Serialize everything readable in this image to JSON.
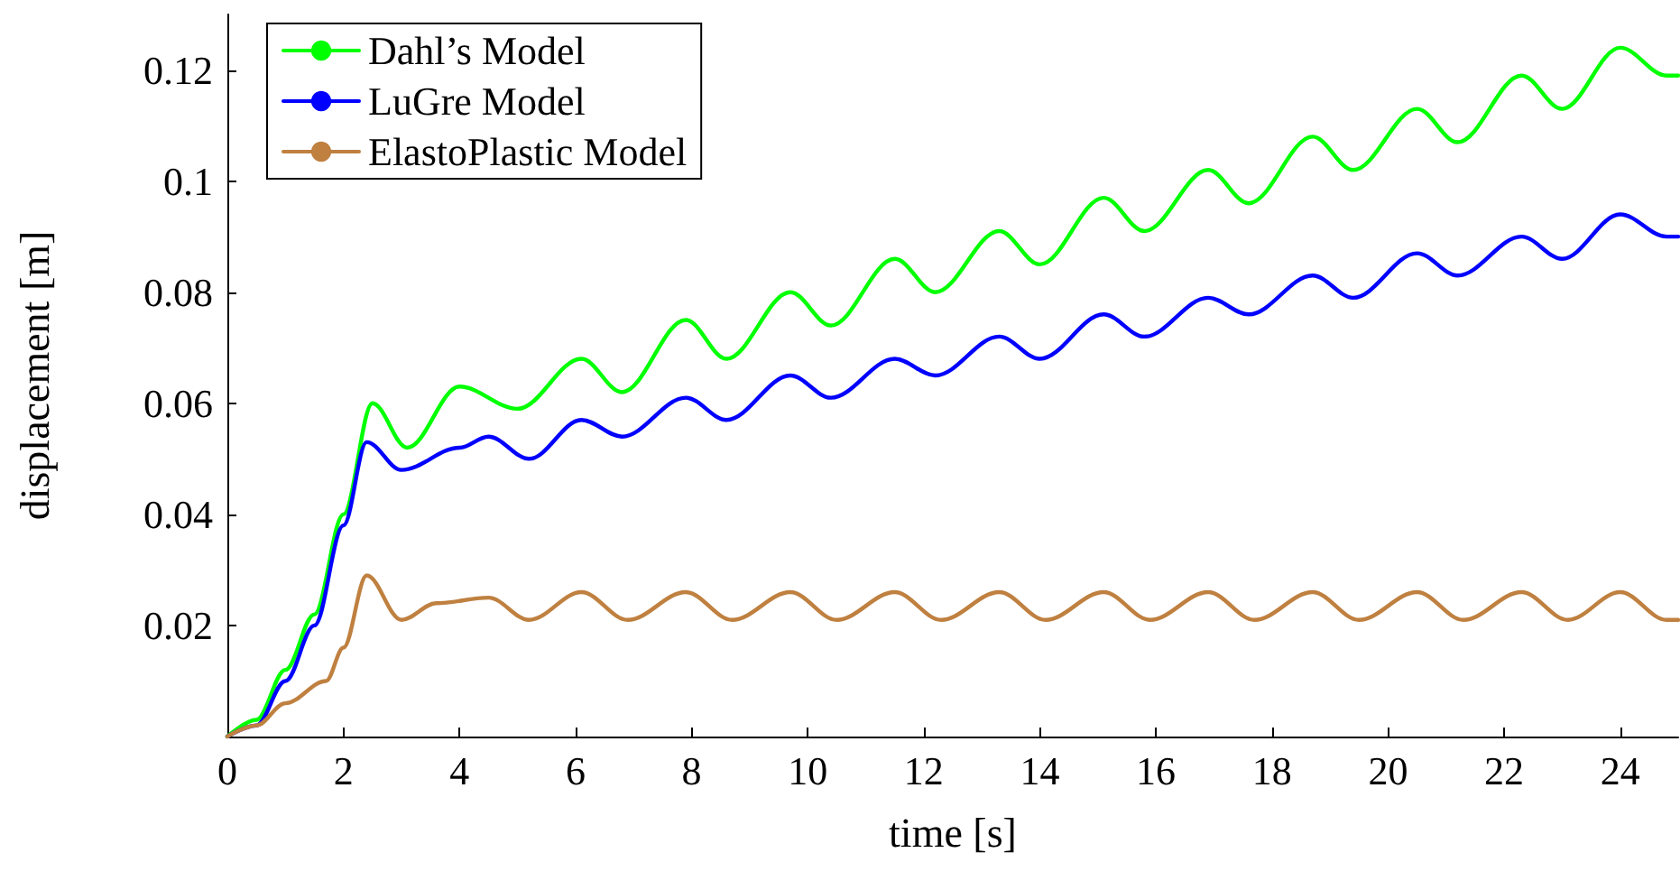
{
  "chart_data": {
    "type": "line",
    "xlabel": "time [s]",
    "ylabel": "displacement [m]",
    "xlim": [
      0,
      25
    ],
    "xticks": [
      0,
      2,
      4,
      6,
      8,
      10,
      12,
      14,
      16,
      18,
      20,
      22,
      24
    ],
    "ylim": [
      0,
      0.13
    ],
    "yticks": [
      0.02,
      0.04,
      0.06,
      0.08,
      0.1,
      0.12
    ],
    "legend": "top left",
    "marker": "none",
    "line_style": "solid",
    "series": [
      {
        "name": "Dahl’s Model",
        "color": "#00ff00",
        "x": [
          0,
          0.5,
          1,
          1.5,
          2,
          2.5,
          3.1,
          4,
          5,
          6.1,
          6.8,
          7.9,
          8.6,
          9.7,
          10.4,
          11.5,
          12.2,
          13.3,
          14,
          15.1,
          15.8,
          16.9,
          17.6,
          18.7,
          19.4,
          20.5,
          21.2,
          22.3,
          23,
          24,
          24.8,
          25
        ],
        "values": [
          0,
          0.003,
          0.012,
          0.022,
          0.04,
          0.06,
          0.052,
          0.063,
          0.059,
          0.068,
          0.062,
          0.075,
          0.068,
          0.08,
          0.074,
          0.086,
          0.08,
          0.091,
          0.085,
          0.097,
          0.091,
          0.102,
          0.096,
          0.108,
          0.102,
          0.113,
          0.107,
          0.119,
          0.113,
          0.124,
          0.119,
          0.119
        ]
      },
      {
        "name": "LuGre Model",
        "color": "#0000ff",
        "x": [
          0,
          0.5,
          1,
          1.5,
          2,
          2.4,
          3,
          4,
          4.5,
          5.2,
          6.1,
          6.8,
          7.9,
          8.6,
          9.7,
          10.4,
          11.5,
          12.2,
          13.3,
          14,
          15.1,
          15.8,
          16.9,
          17.6,
          18.7,
          19.4,
          20.5,
          21.2,
          22.3,
          23,
          24,
          24.8,
          25
        ],
        "values": [
          0,
          0.002,
          0.01,
          0.02,
          0.038,
          0.053,
          0.048,
          0.052,
          0.054,
          0.05,
          0.057,
          0.054,
          0.061,
          0.057,
          0.065,
          0.061,
          0.068,
          0.065,
          0.072,
          0.068,
          0.076,
          0.072,
          0.079,
          0.076,
          0.083,
          0.079,
          0.087,
          0.083,
          0.09,
          0.086,
          0.094,
          0.09,
          0.09
        ]
      },
      {
        "name": "ElastoPlastic Model",
        "color": "#bf8040",
        "x": [
          0,
          0.5,
          1,
          1.7,
          2,
          2.4,
          3,
          3.6,
          4.5,
          5.2,
          6.1,
          6.9,
          7.9,
          8.7,
          9.7,
          10.5,
          11.5,
          12.3,
          13.3,
          14.1,
          15.1,
          15.9,
          16.9,
          17.7,
          18.7,
          19.5,
          20.5,
          21.3,
          22.3,
          23.1,
          24,
          24.8,
          25
        ],
        "values": [
          0,
          0.002,
          0.006,
          0.01,
          0.016,
          0.029,
          0.021,
          0.024,
          0.025,
          0.021,
          0.026,
          0.021,
          0.026,
          0.021,
          0.026,
          0.021,
          0.026,
          0.021,
          0.026,
          0.021,
          0.026,
          0.021,
          0.026,
          0.021,
          0.026,
          0.021,
          0.026,
          0.021,
          0.026,
          0.021,
          0.026,
          0.021,
          0.021
        ]
      }
    ]
  }
}
